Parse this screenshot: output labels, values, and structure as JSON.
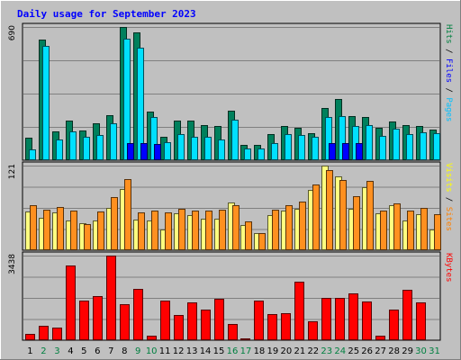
{
  "chart_data": {
    "type": "bar",
    "title": "Daily usage for September 2023",
    "categories": [
      "1",
      "2",
      "3",
      "4",
      "5",
      "6",
      "7",
      "8",
      "9",
      "10",
      "11",
      "12",
      "13",
      "14",
      "15",
      "16",
      "17",
      "18",
      "19",
      "20",
      "21",
      "22",
      "23",
      "24",
      "25",
      "26",
      "27",
      "28",
      "29",
      "30",
      "31"
    ],
    "weekend_days": [
      "2",
      "3",
      "9",
      "10",
      "16",
      "17",
      "23",
      "24",
      "30",
      "31"
    ],
    "panels": [
      {
        "id": "hits-files-pages",
        "ymax_label": "690",
        "ymax": 690,
        "legend": [
          {
            "text": "Pages",
            "color": "#00c0ff"
          },
          {
            "text": "Files",
            "color": "#0000ff"
          },
          {
            "text": "Hits",
            "color": "#008040"
          }
        ],
        "separator": " / ",
        "series": [
          {
            "name": "Hits",
            "color": "#00805c",
            "values": [
              115,
              625,
              150,
              205,
              155,
              190,
              235,
              690,
              660,
              250,
              120,
              205,
              205,
              180,
              175,
              255,
              80,
              80,
              135,
              175,
              170,
              140,
              270,
              315,
              230,
              225,
              170,
              200,
              180,
              175,
              160
            ]
          },
          {
            "name": "Files",
            "color": "#00e0ff",
            "values": [
              55,
              590,
              105,
              150,
              120,
              130,
              190,
              630,
              585,
              225,
              95,
              135,
              120,
              120,
              105,
              210,
              60,
              60,
              90,
              135,
              130,
              120,
              225,
              230,
              175,
              180,
              125,
              165,
              135,
              145,
              140
            ]
          },
          {
            "name": "Pages",
            "color": "#0000ff",
            "values": [
              0,
              0,
              0,
              0,
              0,
              0,
              0,
              90,
              90,
              85,
              0,
              0,
              0,
              0,
              0,
              0,
              0,
              0,
              0,
              0,
              0,
              0,
              90,
              90,
              90,
              0,
              0,
              0,
              0,
              0,
              0
            ]
          }
        ]
      },
      {
        "id": "visits-sites",
        "ymax_label": "121",
        "ymax": 121,
        "legend": [
          {
            "text": "Sites",
            "color": "#ff8000"
          },
          {
            "text": "Visits",
            "color": "#ffff00"
          }
        ],
        "separator": " / ",
        "series": [
          {
            "name": "Visits",
            "color": "#ffff80",
            "values": [
              55,
              46,
              54,
              43,
              38,
              43,
              60,
              88,
              44,
              42,
              30,
              53,
              50,
              45,
              45,
              68,
              36,
              24,
              50,
              57,
              59,
              86,
              121,
              106,
              59,
              90,
              53,
              64,
              43,
              52,
              30
            ]
          },
          {
            "name": "Sites",
            "color": "#ff9020",
            "values": [
              64,
              58,
              62,
              57,
              37,
              55,
              76,
              102,
              54,
              56,
              54,
              59,
              56,
              57,
              58,
              65,
              41,
              24,
              58,
              65,
              70,
              94,
              114,
              100,
              77,
              99,
              56,
              67,
              56,
              61,
              52
            ]
          }
        ]
      },
      {
        "id": "kbytes",
        "ymax_label": "3438",
        "ymax": 3438,
        "legend": [
          {
            "text": "KBytes",
            "color": "#ff0000"
          }
        ],
        "separator": "",
        "series": [
          {
            "name": "KBytes",
            "color": "#ff0000",
            "values": [
              250,
              600,
              530,
              3025,
              1620,
              1800,
              3438,
              1460,
              2090,
              200,
              1600,
              1020,
              1550,
              1260,
              1700,
              670,
              90,
              1620,
              1050,
              1080,
              2360,
              780,
              1710,
              1720,
              1910,
              1580,
              200,
              1240,
              2040,
              1550,
              0
            ]
          }
        ]
      }
    ]
  }
}
